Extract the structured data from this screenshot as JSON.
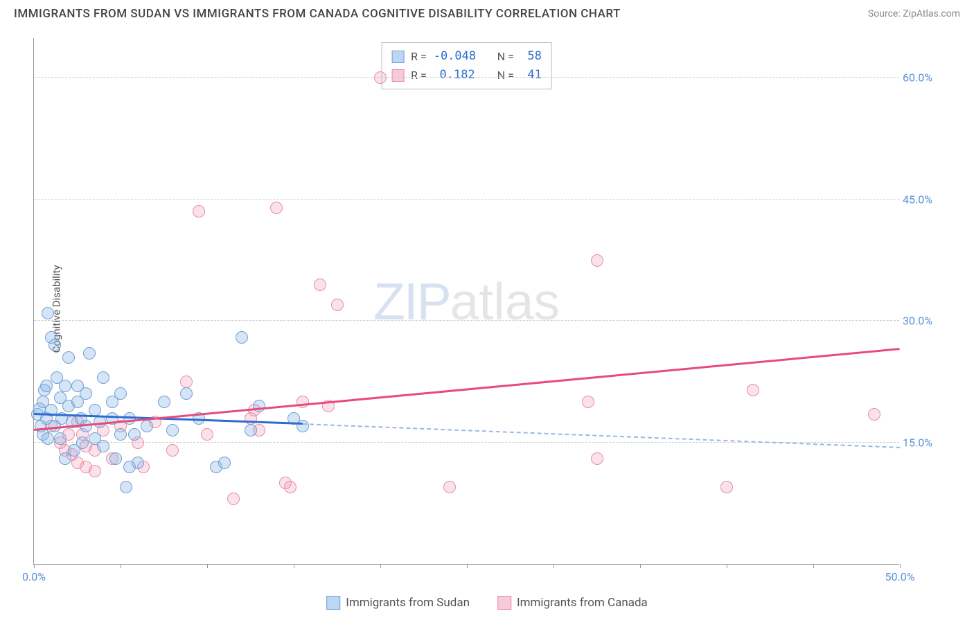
{
  "header": {
    "title": "IMMIGRANTS FROM SUDAN VS IMMIGRANTS FROM CANADA COGNITIVE DISABILITY CORRELATION CHART",
    "source_prefix": "Source: ",
    "source_name": "ZipAtlas.com"
  },
  "chart": {
    "type": "scatter",
    "y_axis_label": "Cognitive Disability",
    "xlim": [
      0,
      50
    ],
    "ylim": [
      0,
      65
    ],
    "x_ticks": [
      0,
      5,
      10,
      15,
      20,
      25,
      30,
      35,
      40,
      45,
      50
    ],
    "x_tick_labels": {
      "0": "0.0%",
      "50": "50.0%"
    },
    "y_gridlines": [
      15,
      30,
      45,
      60
    ],
    "y_tick_labels": {
      "15": "15.0%",
      "30": "30.0%",
      "45": "45.0%",
      "60": "60.0%"
    },
    "grid_color": "#cccccc",
    "axis_color": "#999999",
    "background_color": "#ffffff",
    "label_font_color": "#5a8fd6",
    "marker_radius": 9,
    "series": {
      "sudan": {
        "label": "Immigrants from Sudan",
        "fill_color": "rgba(135,180,230,0.35)",
        "stroke_color": "#6fa0d6",
        "trend_color": "#2e6cd1",
        "R": "-0.048",
        "N": "58",
        "trend": {
          "x1": 0,
          "y1": 18.4,
          "x2": 15.5,
          "y2": 17.2
        },
        "trend_ext": {
          "x1": 15.5,
          "y1": 17.2,
          "x2": 50,
          "y2": 14.3
        },
        "points": [
          [
            0.2,
            18.5
          ],
          [
            0.3,
            19.2
          ],
          [
            0.4,
            17.0
          ],
          [
            0.5,
            20.0
          ],
          [
            0.5,
            16.0
          ],
          [
            0.6,
            21.5
          ],
          [
            0.7,
            18.0
          ],
          [
            0.7,
            22.0
          ],
          [
            0.8,
            31.0
          ],
          [
            0.8,
            15.5
          ],
          [
            1.0,
            28.0
          ],
          [
            1.0,
            19.0
          ],
          [
            1.2,
            27.0
          ],
          [
            1.2,
            17.0
          ],
          [
            1.3,
            23.0
          ],
          [
            1.5,
            20.5
          ],
          [
            1.5,
            15.5
          ],
          [
            1.6,
            18.0
          ],
          [
            1.8,
            13.0
          ],
          [
            1.8,
            22.0
          ],
          [
            2.0,
            19.5
          ],
          [
            2.0,
            25.5
          ],
          [
            2.2,
            17.5
          ],
          [
            2.3,
            14.0
          ],
          [
            2.5,
            20.0
          ],
          [
            2.5,
            22.0
          ],
          [
            2.7,
            18.0
          ],
          [
            2.8,
            15.0
          ],
          [
            3.0,
            21.0
          ],
          [
            3.0,
            17.0
          ],
          [
            3.2,
            26.0
          ],
          [
            3.5,
            15.5
          ],
          [
            3.5,
            19.0
          ],
          [
            3.8,
            17.5
          ],
          [
            4.0,
            23.0
          ],
          [
            4.0,
            14.5
          ],
          [
            4.5,
            18.0
          ],
          [
            4.5,
            20.0
          ],
          [
            4.7,
            13.0
          ],
          [
            5.0,
            21.0
          ],
          [
            5.0,
            16.0
          ],
          [
            5.3,
            9.5
          ],
          [
            5.5,
            12.0
          ],
          [
            5.5,
            18.0
          ],
          [
            5.8,
            16.0
          ],
          [
            6.0,
            12.5
          ],
          [
            6.5,
            17.0
          ],
          [
            7.5,
            20.0
          ],
          [
            8.0,
            16.5
          ],
          [
            8.8,
            21.0
          ],
          [
            9.5,
            18.0
          ],
          [
            10.5,
            12.0
          ],
          [
            11.0,
            12.5
          ],
          [
            12.0,
            28.0
          ],
          [
            12.5,
            16.5
          ],
          [
            13.0,
            19.5
          ],
          [
            15.0,
            18.0
          ],
          [
            15.5,
            17.0
          ]
        ]
      },
      "canada": {
        "label": "Immigrants from Canada",
        "fill_color": "rgba(240,140,170,0.25)",
        "stroke_color": "#e88ca8",
        "trend_color": "#e84a7a",
        "R": "0.182",
        "N": "41",
        "trend": {
          "x1": 0,
          "y1": 16.5,
          "x2": 50,
          "y2": 26.5
        },
        "points": [
          [
            1.0,
            17.0
          ],
          [
            1.5,
            15.0
          ],
          [
            1.8,
            14.0
          ],
          [
            2.0,
            16.0
          ],
          [
            2.2,
            13.5
          ],
          [
            2.5,
            17.5
          ],
          [
            2.5,
            12.5
          ],
          [
            2.8,
            16.0
          ],
          [
            3.0,
            12.0
          ],
          [
            3.0,
            14.5
          ],
          [
            3.5,
            14.0
          ],
          [
            3.5,
            11.5
          ],
          [
            4.0,
            16.5
          ],
          [
            4.5,
            13.0
          ],
          [
            5.0,
            17.0
          ],
          [
            6.0,
            15.0
          ],
          [
            6.3,
            12.0
          ],
          [
            7.0,
            17.5
          ],
          [
            8.0,
            14.0
          ],
          [
            8.8,
            22.5
          ],
          [
            9.5,
            43.5
          ],
          [
            10.0,
            16.0
          ],
          [
            11.5,
            8.0
          ],
          [
            12.5,
            18.0
          ],
          [
            12.7,
            19.0
          ],
          [
            13.0,
            16.5
          ],
          [
            14.0,
            44.0
          ],
          [
            14.5,
            10.0
          ],
          [
            14.8,
            9.5
          ],
          [
            15.5,
            20.0
          ],
          [
            16.5,
            34.5
          ],
          [
            17.0,
            19.5
          ],
          [
            17.5,
            32.0
          ],
          [
            20.0,
            60.0
          ],
          [
            24.0,
            9.5
          ],
          [
            32.0,
            20.0
          ],
          [
            32.5,
            37.5
          ],
          [
            32.5,
            13.0
          ],
          [
            40.0,
            9.5
          ],
          [
            41.5,
            21.5
          ],
          [
            48.5,
            18.5
          ]
        ]
      }
    },
    "watermark": {
      "part1": "ZIP",
      "part2": "atlas"
    }
  },
  "legend": {
    "sudan_label": "Immigrants from Sudan",
    "canada_label": "Immigrants from Canada"
  },
  "stats_labels": {
    "R": "R =",
    "N": "N ="
  }
}
